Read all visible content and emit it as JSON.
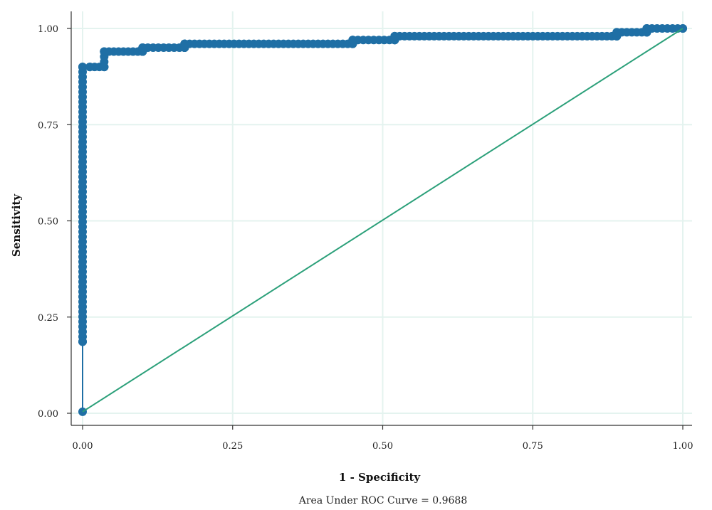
{
  "chart_data": {
    "type": "line",
    "xlabel": "1 - Specificity",
    "ylabel": "Sensitivity",
    "note": "Area Under ROC Curve = 0.9688",
    "xlim": [
      0,
      1
    ],
    "ylim": [
      0,
      1
    ],
    "x_ticks": [
      "0.00",
      "0.25",
      "0.50",
      "0.75",
      "1.00"
    ],
    "y_ticks": [
      "0.00",
      "0.25",
      "0.50",
      "0.75",
      "1.00"
    ],
    "grid": true,
    "series": [
      {
        "color": "#1f6fa5",
        "marker": "circle",
        "points": [
          [
            0,
            0.004
          ],
          [
            0,
            0.186
          ],
          [
            0,
            0.9
          ],
          [
            0.012,
            0.9
          ],
          [
            0.036,
            0.9
          ],
          [
            0.036,
            0.94
          ],
          [
            0.1,
            0.94
          ],
          [
            0.1,
            0.95
          ],
          [
            0.17,
            0.95
          ],
          [
            0.17,
            0.96
          ],
          [
            0.45,
            0.96
          ],
          [
            0.45,
            0.97
          ],
          [
            0.52,
            0.97
          ],
          [
            0.52,
            0.98
          ],
          [
            0.89,
            0.98
          ],
          [
            0.89,
            0.99
          ],
          [
            0.94,
            0.99
          ],
          [
            0.94,
            1.0
          ],
          [
            1.0,
            1.0
          ]
        ]
      },
      {
        "color": "#2ca07a",
        "marker": "none",
        "points": [
          [
            0,
            0.004
          ],
          [
            1.0,
            1.0
          ]
        ]
      }
    ]
  }
}
